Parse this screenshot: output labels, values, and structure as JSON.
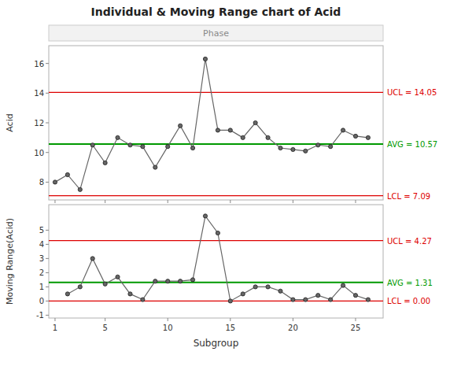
{
  "chart_data": [
    {
      "type": "line",
      "title": "Individual & Moving Range chart of Acid",
      "annotations": [
        "Phase"
      ],
      "y_label": "Acid",
      "x": [
        1,
        2,
        3,
        4,
        5,
        6,
        7,
        8,
        9,
        10,
        11,
        12,
        13,
        14,
        15,
        16,
        17,
        18,
        19,
        20,
        21,
        22,
        23,
        24,
        25,
        26
      ],
      "series": [
        {
          "values": [
            8.0,
            8.5,
            7.5,
            10.5,
            9.3,
            11.0,
            10.5,
            10.4,
            9.0,
            10.4,
            11.8,
            10.3,
            16.3,
            11.5,
            11.5,
            11.0,
            12.0,
            11.0,
            10.3,
            10.2,
            10.1,
            10.5,
            10.4,
            11.5,
            11.1,
            11.0
          ],
          "color": "#666666",
          "marker": "circle"
        }
      ],
      "control_limits": [
        {
          "label": "UCL = 14.05",
          "value": 14.05,
          "color": "#dd0000"
        },
        {
          "label": "AVG = 10.57",
          "value": 10.57,
          "color": "#009900"
        },
        {
          "label": "LCL = 7.09",
          "value": 7.09,
          "color": "#dd0000"
        }
      ],
      "xlim": [
        0.5,
        27.2
      ],
      "xticks": [
        1,
        5,
        10,
        15,
        20,
        25
      ],
      "ylim": [
        6.8,
        17.2
      ],
      "yticks": [
        8,
        10,
        12,
        14,
        16
      ],
      "tick_labels": "y",
      "grid": false
    },
    {
      "type": "line",
      "x_label": "Subgroup",
      "y_label": "Moving Range(Acid)",
      "x": [
        1,
        2,
        3,
        4,
        5,
        6,
        7,
        8,
        9,
        10,
        11,
        12,
        13,
        14,
        15,
        16,
        17,
        18,
        19,
        20,
        21,
        22,
        23,
        24,
        25,
        26
      ],
      "series": [
        {
          "values": [
            null,
            0.5,
            1.0,
            3.0,
            1.2,
            1.7,
            0.5,
            0.1,
            1.4,
            1.4,
            1.4,
            1.5,
            6.0,
            4.8,
            0.0,
            0.5,
            1.0,
            1.0,
            0.7,
            0.1,
            0.1,
            0.4,
            0.1,
            1.1,
            0.4,
            0.1
          ],
          "color": "#666666",
          "marker": "circle"
        }
      ],
      "control_limits": [
        {
          "label": "UCL = 4.27",
          "value": 4.27,
          "color": "#dd0000"
        },
        {
          "label": "AVG = 1.31",
          "value": 1.31,
          "color": "#009900"
        },
        {
          "label": "LCL = 0.00",
          "value": 0.0,
          "color": "#dd0000"
        }
      ],
      "xlim": [
        0.5,
        27.2
      ],
      "xticks": [
        1,
        5,
        10,
        15,
        20,
        25
      ],
      "ylim": [
        -1.2,
        6.8
      ],
      "yticks": [
        -1,
        0,
        1,
        2,
        3,
        4,
        5
      ],
      "grid": false
    }
  ]
}
